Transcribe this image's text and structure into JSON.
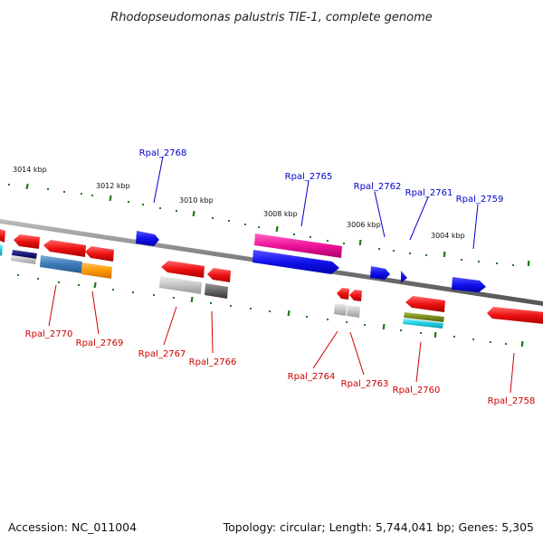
{
  "header": {
    "title": "Rhodopseudomonas palustris TIE-1, complete genome"
  },
  "footer": {
    "accession": "Accession: NC_011004",
    "topology": "Topology: circular; Length: 5,744,041 bp; Genes: 5,305"
  },
  "colors": {
    "forward_label": "#0000cc",
    "reverse_label": "#cc0000",
    "backbone": "#777777",
    "tick": "#1a7a1a"
  },
  "ruler": {
    "outer_ticks": [
      "3014 kbp",
      "3012 kbp",
      "3010 kbp",
      "3008 kbp",
      "3006 kbp",
      "3004 kbp"
    ]
  },
  "genes": {
    "forward": [
      "Rpal_2768",
      "Rpal_2765",
      "Rpal_2762",
      "Rpal_2761",
      "Rpal_2759"
    ],
    "reverse": [
      "Rpal_2770",
      "Rpal_2769",
      "Rpal_2767",
      "Rpal_2766",
      "Rpal_2764",
      "Rpal_2763",
      "Rpal_2760",
      "Rpal_2758"
    ]
  }
}
